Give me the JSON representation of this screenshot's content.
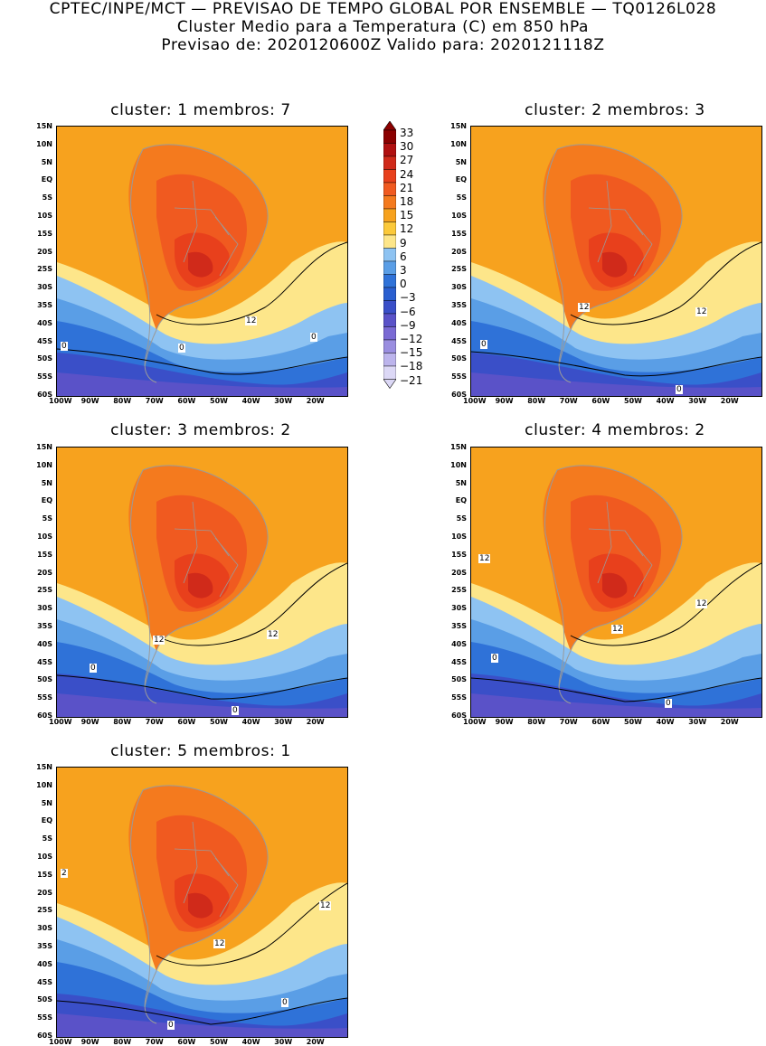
{
  "header": {
    "line1": "CPTEC/INPE/MCT — PREVISAO DE TEMPO GLOBAL POR ENSEMBLE — TQ0126L028",
    "line2": "Cluster Medio para a Temperatura (C) em 850 hPa",
    "line3": "Previsao de: 2020120600Z   Valido para: 2020121118Z"
  },
  "lat_labels": [
    "15N",
    "10N",
    "5N",
    "EQ",
    "5S",
    "10S",
    "15S",
    "20S",
    "25S",
    "30S",
    "35S",
    "40S",
    "45S",
    "50S",
    "55S",
    "60S"
  ],
  "lon_labels": [
    "100W",
    "90W",
    "80W",
    "70W",
    "60W",
    "50W",
    "40W",
    "30W",
    "20W"
  ],
  "colorbar": {
    "labels": [
      "33",
      "30",
      "27",
      "24",
      "21",
      "18",
      "15",
      "12",
      "9",
      "6",
      "3",
      "0",
      "−3",
      "−6",
      "−9",
      "−12",
      "−15",
      "−18",
      "−21"
    ],
    "colors": [
      "#8b0000",
      "#b01010",
      "#d02a1a",
      "#e8401c",
      "#f05a20",
      "#f47a1e",
      "#f7a21e",
      "#fbc93a",
      "#fde68a",
      "#8ec3f2",
      "#5a9ee6",
      "#2f72d8",
      "#2a5fd0",
      "#3a4fc8",
      "#5a52c8",
      "#7a6ad4",
      "#9a8ee0",
      "#bcb4ec",
      "#dcd8f6"
    ]
  },
  "panels": [
    {
      "title": "cluster: 1   membros: 7",
      "contour_labels": [
        "12",
        "0",
        "0",
        "0"
      ]
    },
    {
      "title": "cluster: 2   membros: 3",
      "contour_labels": [
        "12",
        "12",
        "0",
        "0"
      ]
    },
    {
      "title": "cluster: 3   membros: 2",
      "contour_labels": [
        "12",
        "12",
        "0",
        "0"
      ]
    },
    {
      "title": "cluster: 4   membros: 2",
      "contour_labels": [
        "12",
        "12",
        "12",
        "0",
        "0"
      ]
    },
    {
      "title": "cluster: 5   membros: 1",
      "contour_labels": [
        "12",
        "12",
        "2",
        "0",
        "0"
      ]
    }
  ]
}
